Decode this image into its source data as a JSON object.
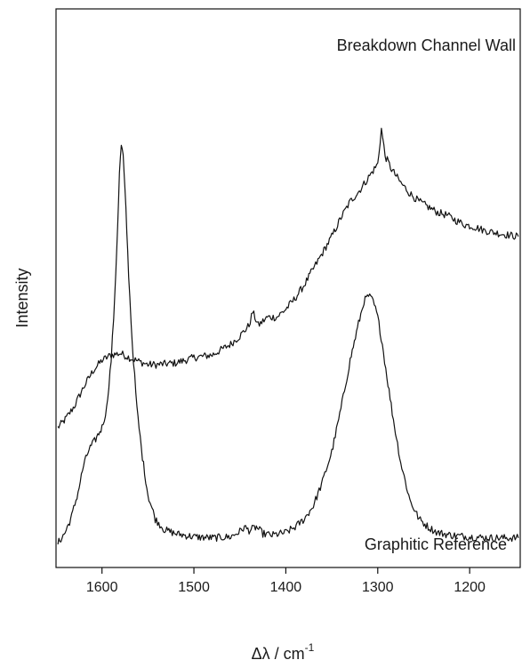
{
  "chart_data": {
    "type": "line",
    "xlabel": "Δλ / cm",
    "xlabel_superscript": "-1",
    "ylabel": "Intensity",
    "xlim": [
      1650,
      1145
    ],
    "ylim": [
      0,
      1
    ],
    "x_reversed": true,
    "xticks": [
      1600,
      1500,
      1400,
      1300,
      1200
    ],
    "yticks_shown": false,
    "grid": false,
    "line_color": "#111111",
    "annotations": [
      "Breakdown Channel Wall",
      "Graphitic Reference"
    ],
    "series": [
      {
        "name": "Breakdown Channel Wall",
        "points": [
          [
            1648,
            0.255
          ],
          [
            1640,
            0.27
          ],
          [
            1630,
            0.295
          ],
          [
            1620,
            0.33
          ],
          [
            1610,
            0.36
          ],
          [
            1600,
            0.38
          ],
          [
            1590,
            0.39
          ],
          [
            1580,
            0.393
          ],
          [
            1570,
            0.385
          ],
          [
            1560,
            0.378
          ],
          [
            1550,
            0.372
          ],
          [
            1540,
            0.372
          ],
          [
            1520,
            0.375
          ],
          [
            1500,
            0.385
          ],
          [
            1480,
            0.39
          ],
          [
            1460,
            0.41
          ],
          [
            1450,
            0.425
          ],
          [
            1440,
            0.445
          ],
          [
            1436,
            0.47
          ],
          [
            1430,
            0.445
          ],
          [
            1420,
            0.46
          ],
          [
            1410,
            0.46
          ],
          [
            1400,
            0.475
          ],
          [
            1390,
            0.495
          ],
          [
            1380,
            0.52
          ],
          [
            1370,
            0.55
          ],
          [
            1360,
            0.58
          ],
          [
            1350,
            0.61
          ],
          [
            1340,
            0.645
          ],
          [
            1330,
            0.675
          ],
          [
            1320,
            0.695
          ],
          [
            1310,
            0.72
          ],
          [
            1300,
            0.745
          ],
          [
            1296,
            0.81
          ],
          [
            1292,
            0.76
          ],
          [
            1285,
            0.735
          ],
          [
            1275,
            0.71
          ],
          [
            1265,
            0.69
          ],
          [
            1255,
            0.675
          ],
          [
            1245,
            0.665
          ],
          [
            1235,
            0.655
          ],
          [
            1225,
            0.65
          ],
          [
            1215,
            0.64
          ],
          [
            1205,
            0.632
          ],
          [
            1195,
            0.628
          ],
          [
            1185,
            0.622
          ],
          [
            1175,
            0.618
          ],
          [
            1165,
            0.615
          ],
          [
            1155,
            0.612
          ],
          [
            1147,
            0.61
          ]
        ]
      },
      {
        "name": "Graphitic Reference",
        "points": [
          [
            1648,
            0.04
          ],
          [
            1640,
            0.06
          ],
          [
            1633,
            0.09
          ],
          [
            1626,
            0.135
          ],
          [
            1620,
            0.185
          ],
          [
            1614,
            0.215
          ],
          [
            1608,
            0.23
          ],
          [
            1600,
            0.255
          ],
          [
            1595,
            0.29
          ],
          [
            1590,
            0.38
          ],
          [
            1586,
            0.5
          ],
          [
            1583,
            0.63
          ],
          [
            1581,
            0.73
          ],
          [
            1579,
            0.78
          ],
          [
            1577,
            0.76
          ],
          [
            1574,
            0.66
          ],
          [
            1571,
            0.54
          ],
          [
            1567,
            0.41
          ],
          [
            1562,
            0.29
          ],
          [
            1556,
            0.2
          ],
          [
            1550,
            0.13
          ],
          [
            1542,
            0.085
          ],
          [
            1532,
            0.065
          ],
          [
            1520,
            0.058
          ],
          [
            1500,
            0.052
          ],
          [
            1480,
            0.05
          ],
          [
            1460,
            0.052
          ],
          [
            1450,
            0.062
          ],
          [
            1445,
            0.07
          ],
          [
            1440,
            0.064
          ],
          [
            1432,
            0.07
          ],
          [
            1425,
            0.058
          ],
          [
            1415,
            0.055
          ],
          [
            1400,
            0.06
          ],
          [
            1390,
            0.07
          ],
          [
            1380,
            0.085
          ],
          [
            1370,
            0.11
          ],
          [
            1360,
            0.155
          ],
          [
            1350,
            0.21
          ],
          [
            1340,
            0.29
          ],
          [
            1330,
            0.38
          ],
          [
            1322,
            0.44
          ],
          [
            1315,
            0.49
          ],
          [
            1310,
            0.5
          ],
          [
            1305,
            0.49
          ],
          [
            1300,
            0.46
          ],
          [
            1295,
            0.41
          ],
          [
            1290,
            0.35
          ],
          [
            1283,
            0.27
          ],
          [
            1275,
            0.19
          ],
          [
            1265,
            0.12
          ],
          [
            1255,
            0.085
          ],
          [
            1245,
            0.07
          ],
          [
            1235,
            0.06
          ],
          [
            1220,
            0.055
          ],
          [
            1200,
            0.052
          ],
          [
            1180,
            0.05
          ],
          [
            1160,
            0.05
          ],
          [
            1147,
            0.05
          ]
        ]
      }
    ]
  }
}
